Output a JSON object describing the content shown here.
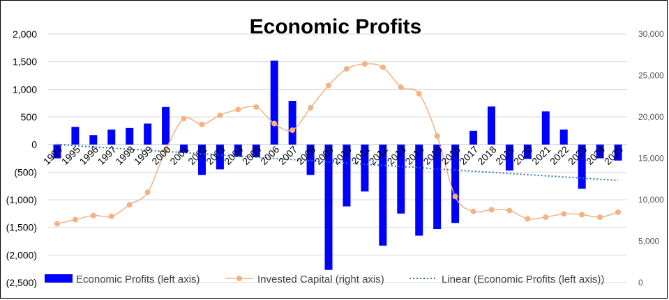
{
  "chart_data": {
    "type": "bar",
    "title": "Economic Profits",
    "categories": [
      "1994",
      "1995",
      "1996",
      "1997",
      "1998",
      "1999",
      "2000",
      "2001",
      "2002",
      "2003",
      "2004",
      "2005",
      "2006",
      "2007",
      "2008",
      "2009",
      "2010",
      "2011",
      "2012",
      "2013",
      "2014",
      "2015",
      "2016",
      "2017",
      "2018",
      "2019",
      "2020",
      "2021",
      "2022",
      "2023",
      "2024",
      "2025"
    ],
    "series": [
      {
        "name": "Economic Profits (left axis)",
        "type": "bar",
        "axis": "left",
        "color": "#0000ff",
        "values": [
          -250,
          320,
          170,
          270,
          300,
          380,
          680,
          -150,
          -550,
          -450,
          -220,
          -230,
          1520,
          790,
          -550,
          -2270,
          -1120,
          -850,
          -1830,
          -1250,
          -1650,
          -1530,
          -1420,
          250,
          690,
          -470,
          -260,
          600,
          270,
          -800,
          -250,
          -290
        ]
      },
      {
        "name": "Invested Capital (right axis)",
        "type": "line",
        "axis": "right",
        "color": "#f4b183",
        "values": [
          7100,
          7600,
          8100,
          8000,
          9400,
          10900,
          16000,
          19800,
          19100,
          20200,
          20900,
          21200,
          19200,
          18400,
          21100,
          23800,
          25800,
          26400,
          26000,
          23600,
          22800,
          17700,
          10400,
          8600,
          8800,
          8700,
          7700,
          7900,
          8300,
          8200,
          7900,
          8500
        ]
      },
      {
        "name": "Linear (Economic Profits (left axis))",
        "type": "trendline",
        "axis": "left",
        "color": "#2e75b6",
        "start": 0,
        "end": -650
      }
    ],
    "y_left": {
      "min": -2500,
      "max": 2000,
      "step": 500
    },
    "y_right": {
      "min": 0,
      "max": 30000,
      "step": 5000
    },
    "y_left_ticks": [
      "2,000",
      "1,500",
      "1,000",
      "500",
      "0",
      "(500)",
      "(1,000)",
      "(1,500)",
      "(2,000)",
      "(2,500)"
    ],
    "y_right_ticks": [
      "30,000",
      "25,000",
      "20,000",
      "15,000",
      "10,000",
      "5,000",
      "0"
    ],
    "legend_position": "bottom",
    "grid": true
  }
}
